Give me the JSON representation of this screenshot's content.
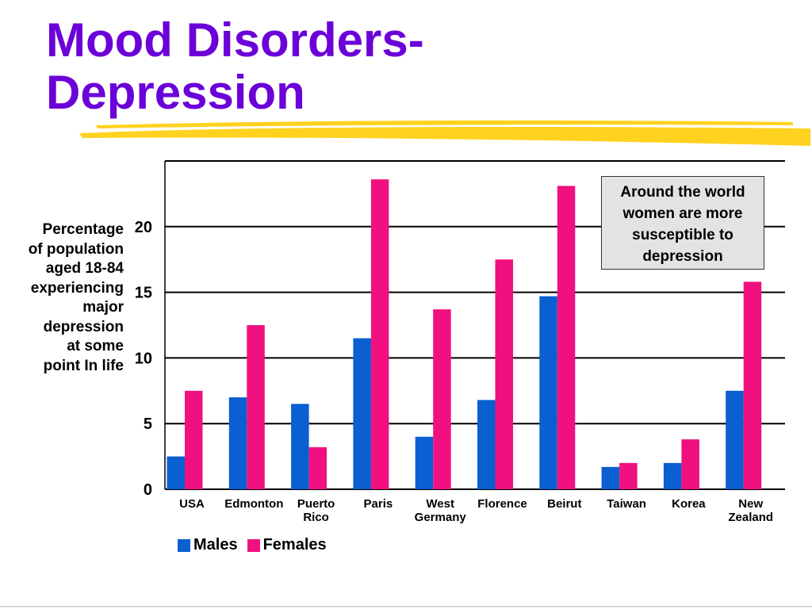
{
  "slide": {
    "title_line1": "Mood Disorders-",
    "title_line2": "Depression",
    "title_color": "#6b00d8",
    "highlight_color": "#ffd21f"
  },
  "note_box": {
    "text": "Around the world\nwomen are more\nsusceptible to\ndepression"
  },
  "chart_data": {
    "type": "bar",
    "ylabel": "Percentage\nof population\naged 18-84\nexperiencing\nmajor\ndepression\nat some\npoint In life",
    "categories": [
      [
        "USA"
      ],
      [
        "Edmonton"
      ],
      [
        "Puerto",
        "Rico"
      ],
      [
        "Paris"
      ],
      [
        "West",
        "Germany"
      ],
      [
        "Florence"
      ],
      [
        "Beirut"
      ],
      [
        "Taiwan"
      ],
      [
        "Korea"
      ],
      [
        "New",
        "Zealand"
      ]
    ],
    "series": [
      {
        "name": "Males",
        "color": "#0a5fd1",
        "values": [
          2.5,
          7.0,
          6.5,
          11.5,
          4.0,
          6.8,
          14.7,
          1.7,
          2.0,
          7.5
        ]
      },
      {
        "name": "Females",
        "color": "#f01080",
        "values": [
          7.5,
          12.5,
          3.2,
          23.6,
          13.7,
          17.5,
          23.1,
          2.0,
          3.8,
          15.8
        ]
      }
    ],
    "yticks": [
      0,
      5,
      10,
      15,
      20
    ],
    "ylim": [
      0,
      25
    ],
    "grid": true,
    "legend": "bottom-left"
  }
}
